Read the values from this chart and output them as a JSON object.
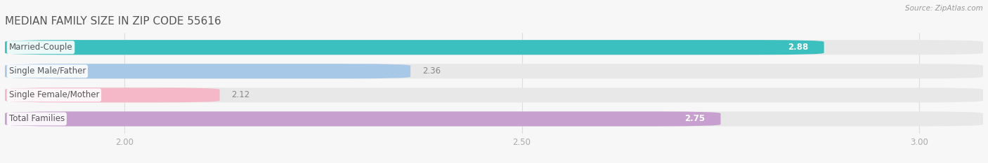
{
  "title": "MEDIAN FAMILY SIZE IN ZIP CODE 55616",
  "source": "Source: ZipAtlas.com",
  "categories": [
    "Married-Couple",
    "Single Male/Father",
    "Single Female/Mother",
    "Total Families"
  ],
  "values": [
    2.88,
    2.36,
    2.12,
    2.75
  ],
  "bar_colors": [
    "#3bbfbf",
    "#a8c8e8",
    "#f4b8c8",
    "#c8a0d0"
  ],
  "value_label_inside": [
    true,
    false,
    false,
    true
  ],
  "xlim": [
    1.85,
    3.08
  ],
  "xmin": 1.85,
  "xticks": [
    2.0,
    2.5,
    3.0
  ],
  "background_color": "#f7f7f7",
  "bar_bg_color": "#e8e8e8",
  "title_fontsize": 11,
  "bar_height": 0.62,
  "bar_gap": 0.15,
  "label_fontsize": 8.5,
  "value_fontsize": 8.5,
  "title_color": "#555555",
  "label_text_color": "#555555",
  "outside_value_color": "#888888",
  "inside_value_color": "#ffffff",
  "source_color": "#999999",
  "tick_color": "#aaaaaa",
  "grid_color": "#dddddd"
}
